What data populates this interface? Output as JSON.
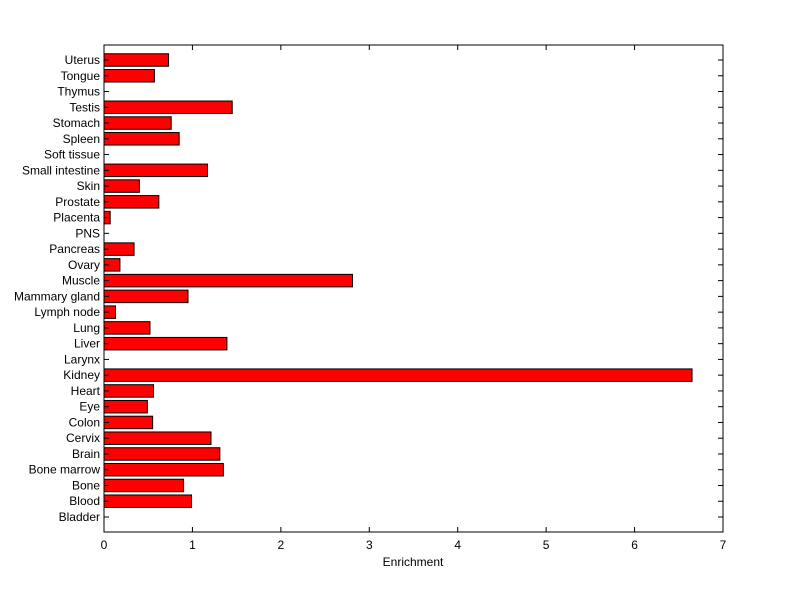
{
  "chart_data": {
    "type": "bar",
    "orientation": "horizontal",
    "title": "",
    "xlabel": "Enrichment",
    "ylabel": "",
    "xlim": [
      0,
      7
    ],
    "xticks": [
      0,
      1,
      2,
      3,
      4,
      5,
      6,
      7
    ],
    "xtick_labels": [
      "0",
      "1",
      "2",
      "3",
      "4",
      "5",
      "6",
      "7"
    ],
    "grid": false,
    "bar_color": "#ff0000",
    "bar_edge_color": "#000000",
    "categories": [
      "Bladder",
      "Blood",
      "Bone",
      "Bone marrow",
      "Brain",
      "Cervix",
      "Colon",
      "Eye",
      "Heart",
      "Kidney",
      "Larynx",
      "Liver",
      "Lung",
      "Lymph node",
      "Mammary gland",
      "Muscle",
      "Ovary",
      "Pancreas",
      "PNS",
      "Placenta",
      "Prostate",
      "Skin",
      "Small intestine",
      "Soft tissue",
      "Spleen",
      "Stomach",
      "Testis",
      "Thymus",
      "Tongue",
      "Uterus"
    ],
    "values": [
      0,
      0.99,
      0.9,
      1.35,
      1.31,
      1.21,
      0.55,
      0.49,
      0.56,
      6.65,
      0,
      1.39,
      0.52,
      0.13,
      0.95,
      2.81,
      0.18,
      0.34,
      0,
      0.07,
      0.62,
      0.4,
      1.17,
      0,
      0.85,
      0.76,
      1.45,
      0,
      0.57,
      0.73
    ]
  }
}
